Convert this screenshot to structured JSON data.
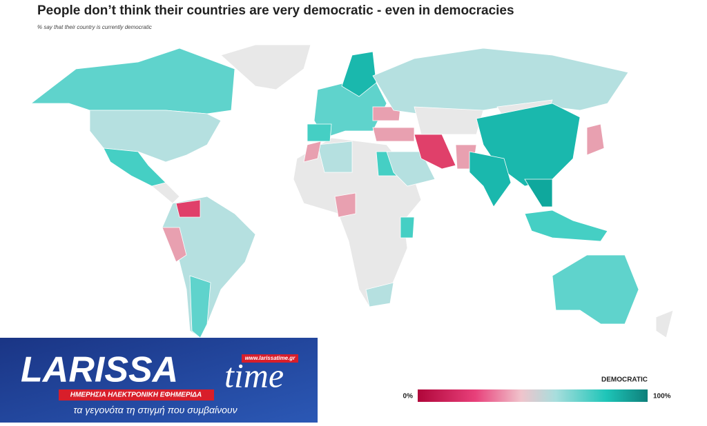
{
  "header": {
    "title": "People don’t think their countries are very democratic - even in democracies",
    "subtitle": "% say that their country is currently democratic"
  },
  "legend": {
    "title": "DEMOCRATIC",
    "ticks": [
      {
        "value": 0,
        "label": "0%"
      },
      {
        "value": 100,
        "label": "100%"
      }
    ]
  },
  "logo": {
    "name": "LARISSA",
    "name2": "time",
    "url": "www.larissatime.gr",
    "tagline": "ΗΜΕΡΗΣΙΑ ΗΛΕΚΤΡΟΝΙΚΗ ΕΦΗΜΕΡΙΔΑ",
    "slogan": "τα γεγονότα τη στιγμή που συμβαίνουν"
  }
}
